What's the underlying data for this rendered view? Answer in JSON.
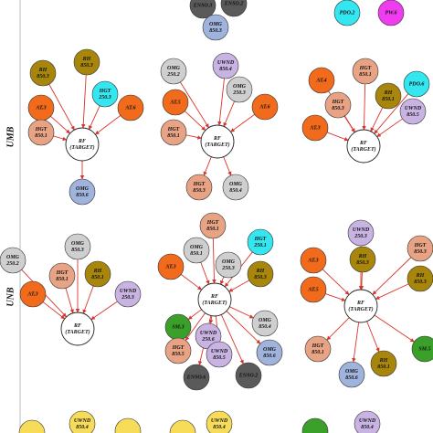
{
  "row_labels": [
    "UMB",
    "UNB"
  ],
  "diagrams": [
    {
      "parents": [
        {
          "lines": [
            "ENSO.3"
          ],
          "color": "#5a5a5a"
        },
        {
          "lines": [
            "ENSO.2"
          ],
          "color": "#5a5a5a"
        },
        {
          "lines": [
            "OMG",
            "850.3"
          ],
          "color": "#9fb3dc"
        }
      ]
    },
    {
      "parents": [
        {
          "lines": [
            "PDO.2"
          ],
          "color": "#33e6f0"
        },
        {
          "lines": [
            "PW.6"
          ],
          "color": "#f03cf0"
        }
      ]
    },
    {
      "target": [
        "RF",
        "(TARGET)"
      ],
      "parents": [
        {
          "lines": [
            "RH",
            "850.3"
          ],
          "color": "#a8860c"
        },
        {
          "lines": [
            "RH",
            "850.3"
          ],
          "color": "#a8860c"
        },
        {
          "lines": [
            "AT.3"
          ],
          "color": "#f26a1b"
        },
        {
          "lines": [
            "HGT",
            "250.3"
          ],
          "color": "#33e6f0"
        },
        {
          "lines": [
            "AT.6"
          ],
          "color": "#f26a1b"
        },
        {
          "lines": [
            "HGT",
            "850.1"
          ],
          "color": "#e8a384"
        }
      ],
      "children": [
        {
          "lines": [
            "OMG",
            "850.6"
          ],
          "color": "#9fb3dc"
        }
      ]
    },
    {
      "target": [
        "RF",
        "(TARGET)"
      ],
      "parents": [
        {
          "lines": [
            "OMG",
            "250.2"
          ],
          "color": "#cfcfcf"
        },
        {
          "lines": [
            "UWND",
            "850.4"
          ],
          "color": "#c9b3e3"
        },
        {
          "lines": [
            "AT.5"
          ],
          "color": "#f26a1b"
        },
        {
          "lines": [
            "OMG",
            "250.3"
          ],
          "color": "#cfcfcf"
        },
        {
          "lines": [
            "AT.6"
          ],
          "color": "#f26a1b"
        },
        {
          "lines": [
            "HGT",
            "850.1"
          ],
          "color": "#e8a384"
        }
      ],
      "children": [
        {
          "lines": [
            "HGT",
            "850.3"
          ],
          "color": "#e8a384"
        },
        {
          "lines": [
            "OMG",
            "850.4"
          ],
          "color": "#cfcfcf"
        }
      ]
    },
    {
      "target": [
        "RF",
        "(TARGET)"
      ],
      "parents": [
        {
          "lines": [
            "AT.4"
          ],
          "color": "#f26a1b"
        },
        {
          "lines": [
            "HGT",
            "850.1"
          ],
          "color": "#e8a384"
        },
        {
          "lines": [
            "RH",
            "850.1"
          ],
          "color": "#a8860c"
        },
        {
          "lines": [
            "PDO.6"
          ],
          "color": "#33e6f0"
        },
        {
          "lines": [
            "HGT",
            "850.3"
          ],
          "color": "#e8a384"
        },
        {
          "lines": [
            "UWND",
            "850.5"
          ],
          "color": "#c9b3e3"
        },
        {
          "lines": [
            "AT.3"
          ],
          "color": "#f26a1b"
        }
      ]
    },
    {
      "target": [
        "RF",
        "(TARGET)"
      ],
      "parents": [
        {
          "lines": [
            "OMG",
            "250.2"
          ],
          "color": "#cfcfcf"
        },
        {
          "lines": [
            "OMG",
            "850.3"
          ],
          "color": "#cfcfcf"
        },
        {
          "lines": [
            "HGT",
            "850.1"
          ],
          "color": "#e8a384"
        },
        {
          "lines": [
            "RH",
            "850.1"
          ],
          "color": "#a8860c"
        },
        {
          "lines": [
            "AT.3"
          ],
          "color": "#f26a1b"
        },
        {
          "lines": [
            "UWND",
            "250.3"
          ],
          "color": "#c9b3e3"
        }
      ]
    },
    {
      "target": [
        "RF",
        "(TARGET)"
      ],
      "parents": [
        {
          "lines": [
            "HGT",
            "850.1"
          ],
          "color": "#e8a384"
        },
        {
          "lines": [
            "HGT",
            "250.1"
          ],
          "color": "#33e6f0"
        },
        {
          "lines": [
            "OMG",
            "850.1"
          ],
          "color": "#cfcfcf"
        },
        {
          "lines": [
            "OMG",
            "250.3"
          ],
          "color": "#cfcfcf"
        },
        {
          "lines": [
            "AT.3"
          ],
          "color": "#f26a1b"
        },
        {
          "lines": [
            "RH",
            "850.3"
          ],
          "color": "#a8860c"
        }
      ],
      "children": [
        {
          "lines": [
            "SM.3"
          ],
          "color": "#3aa02a"
        },
        {
          "lines": [
            "UWND",
            "250.6"
          ],
          "color": "#c9b3e3"
        },
        {
          "lines": [
            "OMG",
            "850.4"
          ],
          "color": "#cfcfcf"
        },
        {
          "lines": [
            "HGT",
            "850.5"
          ],
          "color": "#e8a384"
        },
        {
          "lines": [
            "UWND",
            "850.5"
          ],
          "color": "#c9b3e3"
        },
        {
          "lines": [
            "OMG",
            "850.6"
          ],
          "color": "#9fb3dc"
        },
        {
          "lines": [
            "ENSO.6"
          ],
          "color": "#5a5a5a"
        },
        {
          "lines": [
            "ENSO.2"
          ],
          "color": "#5a5a5a"
        }
      ]
    },
    {
      "target": [
        "RF",
        "(TARGET)"
      ],
      "parents": [
        {
          "lines": [
            "UWND",
            "250.3"
          ],
          "color": "#c9b3e3"
        },
        {
          "lines": [
            "RH",
            "850.3"
          ],
          "color": "#a8860c"
        },
        {
          "lines": [
            "AT.3"
          ],
          "color": "#f26a1b"
        },
        {
          "lines": [
            "HGT",
            "850.3"
          ],
          "color": "#e8a384"
        },
        {
          "lines": [
            "RH",
            "850.3"
          ],
          "color": "#a8860c"
        },
        {
          "lines": [
            "AT.5"
          ],
          "color": "#f26a1b"
        }
      ],
      "children": [
        {
          "lines": [
            "HGT",
            "850.1"
          ],
          "color": "#e8a384"
        },
        {
          "lines": [
            "OMG",
            "850.6"
          ],
          "color": "#9fb3dc"
        },
        {
          "lines": [
            "RH",
            "850.1"
          ],
          "color": "#a8860c"
        },
        {
          "lines": [
            "SM.5"
          ],
          "color": "#3aa02a"
        }
      ]
    },
    {
      "parents": [
        {
          "lines": [
            "UWND",
            "850.4"
          ],
          "color": "#f7dc5a"
        }
      ]
    },
    {
      "parents": [
        {
          "lines": [
            "UWND",
            "850.4"
          ],
          "color": "#f7dc5a"
        }
      ]
    },
    {
      "parents": [
        {
          "lines": [
            "UWND",
            "850.4"
          ],
          "color": "#c9b3e3"
        }
      ]
    }
  ]
}
